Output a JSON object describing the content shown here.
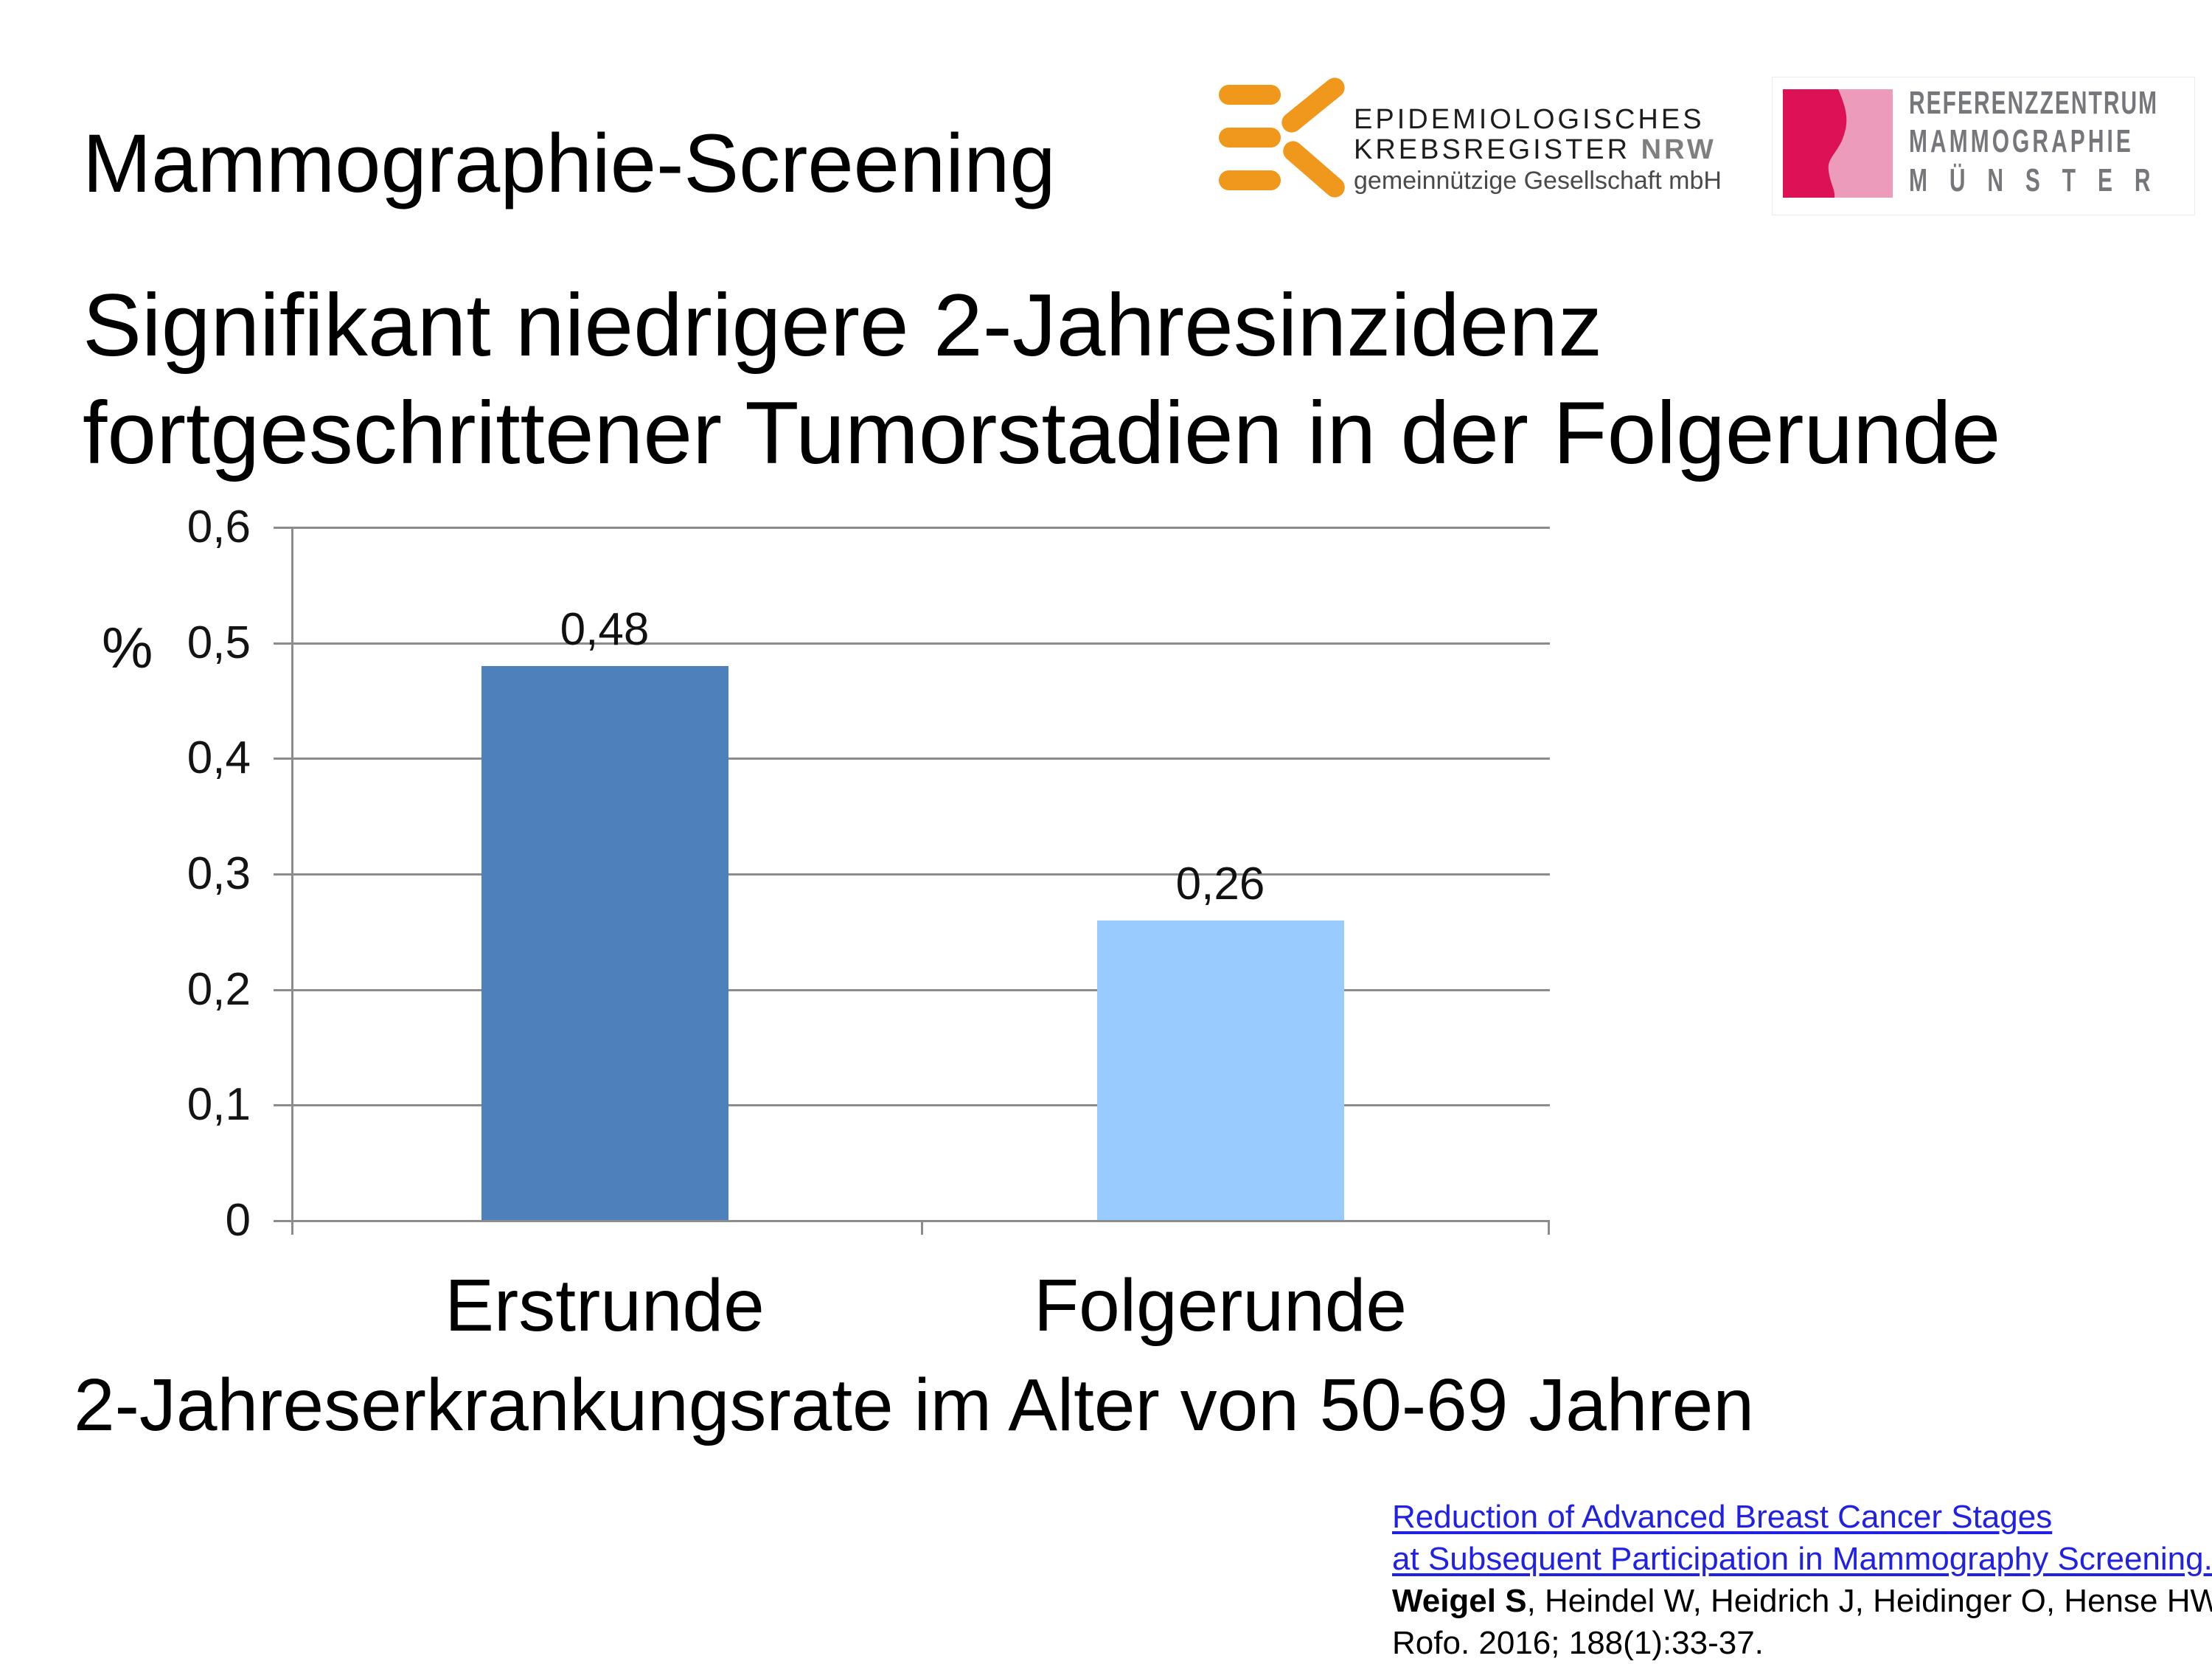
{
  "slide": {
    "title": "Mammographie-Screening",
    "subtitle_line1": "Signifikant niedrigere 2-Jahresinzidenz",
    "subtitle_line2": "fortgeschrittener Tumorstadien in der Folgerunde",
    "caption": "2-Jahreserkrankungsrate im Alter von 50-69 Jahren"
  },
  "logos": {
    "krebsregister": {
      "line1": "EPIDEMIOLOGISCHES",
      "line2": "KREBSREGISTER ",
      "line2_highlight": "NRW",
      "line3": "gemeinnützige Gesellschaft mbH",
      "icon_color": "#F0981C"
    },
    "referenzzentrum": {
      "line1": "REFERENZZENTRUM",
      "line2": "MAMMOGRAPHIE",
      "line3": "MÜNSTER",
      "dark_pink": "#DD1155",
      "light_pink": "#EC9CBA",
      "text_color": "#76777B"
    }
  },
  "chart_data": {
    "type": "bar",
    "categories": [
      "Erstrunde",
      "Folgerunde"
    ],
    "values": [
      0.48,
      0.26
    ],
    "value_labels": [
      "0,48",
      "0,26"
    ],
    "bar_colors": [
      "#4E81BC",
      "#9ACBFE"
    ],
    "title": "",
    "xlabel": "",
    "ylabel": "%",
    "ylim": [
      0,
      0.6
    ],
    "ytick_step": 0.1,
    "ytick_labels": [
      "0,6",
      "0,5",
      "0,4",
      "0,3",
      "0,2",
      "0,1",
      "0"
    ],
    "grid": true,
    "legend": false
  },
  "citation": {
    "link_line1": "Reduction of Advanced Breast Cancer Stages",
    "link_line2": "at Subsequent Participation in Mammography Screening.",
    "authors_bold": "Weigel S",
    "authors_rest": ", Heindel W, Heidrich J, Heidinger O, Hense HW.",
    "journal": "Rofo. 2016; 188(1):33-37.",
    "link_color": "#2121E3"
  }
}
